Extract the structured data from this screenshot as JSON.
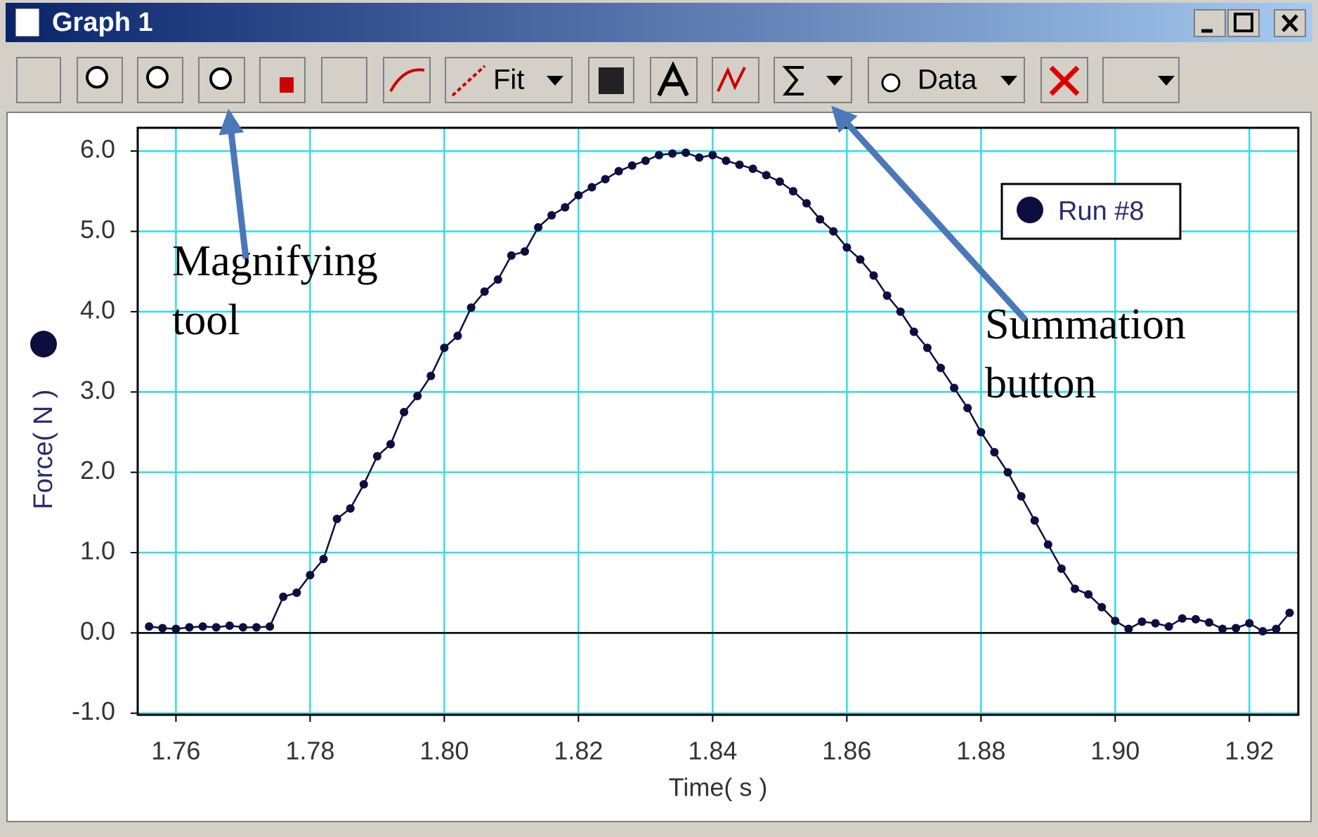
{
  "window": {
    "title": "Graph 1"
  },
  "toolbar": {
    "fit": "Fit",
    "data": "Data"
  },
  "annotations": [
    {
      "lines": [
        "Magnifying",
        "tool"
      ]
    },
    {
      "lines": [
        "Summation",
        "button"
      ]
    }
  ],
  "chart_data": {
    "type": "line",
    "x_label": "Time( s )",
    "y_label": "Force( N )",
    "xlim": [
      1.7543,
      1.9273
    ],
    "ylim": [
      -1.02,
      6.29
    ],
    "xticks": [
      1.76,
      1.78,
      {
        "value": 1.8,
        "label": "1.80"
      },
      1.82,
      1.84,
      1.86,
      1.88,
      {
        "value": 1.9,
        "label": "1.90"
      },
      1.92
    ],
    "yticks": [
      {
        "value": -1,
        "label": "-1.0"
      },
      {
        "value": 0,
        "label": "0.0"
      },
      {
        "value": 1,
        "label": "1.0"
      },
      {
        "value": 2,
        "label": "2.0"
      },
      {
        "value": 3,
        "label": "3.0"
      },
      {
        "value": 4,
        "label": "4.0"
      },
      {
        "value": 5,
        "label": "5.0"
      },
      {
        "value": 6,
        "label": "6.0"
      }
    ],
    "grid": true,
    "legend": "upper right",
    "x": [
      1.756,
      1.758,
      1.76,
      1.762,
      1.764,
      1.766,
      1.768,
      1.77,
      1.772,
      1.774,
      1.776,
      1.778,
      1.78,
      1.782,
      1.784,
      1.786,
      1.788,
      1.79,
      1.792,
      1.794,
      1.796,
      1.798,
      1.8,
      1.802,
      1.804,
      1.806,
      1.808,
      1.81,
      1.812,
      1.814,
      1.816,
      1.818,
      1.82,
      1.822,
      1.824,
      1.826,
      1.828,
      1.83,
      1.832,
      1.834,
      1.836,
      1.838,
      1.84,
      1.842,
      1.844,
      1.846,
      1.848,
      1.85,
      1.852,
      1.854,
      1.856,
      1.858,
      1.86,
      1.862,
      1.864,
      1.866,
      1.868,
      1.87,
      1.872,
      1.874,
      1.876,
      1.878,
      1.88,
      1.882,
      1.884,
      1.886,
      1.888,
      1.89,
      1.892,
      1.894,
      1.896,
      1.898,
      1.9,
      1.902,
      1.904,
      1.906,
      1.908,
      1.91,
      1.912,
      1.914,
      1.916,
      1.918,
      1.92,
      1.922,
      1.924,
      1.926
    ],
    "series": [
      {
        "name": "Run #8",
        "color": "#0d0d40",
        "values": [
          0.08,
          0.06,
          0.05,
          0.07,
          0.08,
          0.07,
          0.09,
          0.07,
          0.07,
          0.08,
          0.45,
          0.5,
          0.72,
          0.92,
          1.42,
          1.55,
          1.85,
          2.2,
          2.35,
          2.75,
          2.95,
          3.2,
          3.55,
          3.7,
          4.05,
          4.25,
          4.4,
          4.7,
          4.75,
          5.05,
          5.2,
          5.3,
          5.45,
          5.55,
          5.65,
          5.75,
          5.82,
          5.88,
          5.95,
          5.97,
          5.98,
          5.92,
          5.95,
          5.88,
          5.83,
          5.78,
          5.7,
          5.62,
          5.5,
          5.35,
          5.15,
          5.0,
          4.8,
          4.65,
          4.45,
          4.2,
          4.0,
          3.75,
          3.55,
          3.3,
          3.05,
          2.8,
          2.5,
          2.25,
          2.0,
          1.7,
          1.4,
          1.1,
          0.8,
          0.55,
          0.48,
          0.32,
          0.15,
          0.05,
          0.14,
          0.12,
          0.08,
          0.18,
          0.17,
          0.13,
          0.05,
          0.06,
          0.12,
          0.02,
          0.05,
          0.25
        ]
      }
    ]
  }
}
